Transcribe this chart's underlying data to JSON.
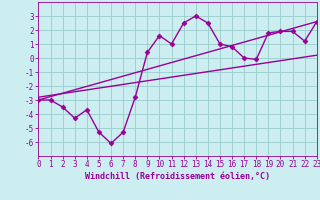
{
  "xlabel": "Windchill (Refroidissement éolien,°C)",
  "background_color": "#cceef0",
  "grid_color": "#99cccc",
  "line_color": "#990099",
  "xlim": [
    0,
    23
  ],
  "ylim": [
    -7,
    4
  ],
  "yticks": [
    -6,
    -5,
    -4,
    -3,
    -2,
    -1,
    0,
    1,
    2,
    3
  ],
  "xticks": [
    0,
    1,
    2,
    3,
    4,
    5,
    6,
    7,
    8,
    9,
    10,
    11,
    12,
    13,
    14,
    15,
    16,
    17,
    18,
    19,
    20,
    21,
    22,
    23
  ],
  "scatter_x": [
    0,
    1,
    2,
    3,
    4,
    5,
    6,
    7,
    8,
    9,
    10,
    11,
    12,
    13,
    14,
    15,
    16,
    17,
    18,
    19,
    20,
    21,
    22,
    23
  ],
  "scatter_y": [
    -3.0,
    -3.0,
    -3.5,
    -4.3,
    -3.7,
    -5.3,
    -6.1,
    -5.3,
    -2.8,
    0.4,
    1.6,
    1.0,
    2.5,
    3.0,
    2.5,
    1.0,
    0.8,
    0.0,
    -0.1,
    1.8,
    1.9,
    1.9,
    1.2,
    2.6
  ],
  "line1_x": [
    0,
    23
  ],
  "line1_y": [
    -3.0,
    2.6
  ],
  "line2_x": [
    0,
    23
  ],
  "line2_y": [
    -2.8,
    0.2
  ],
  "marker": "D",
  "markersize": 2.5,
  "linewidth": 1.0
}
